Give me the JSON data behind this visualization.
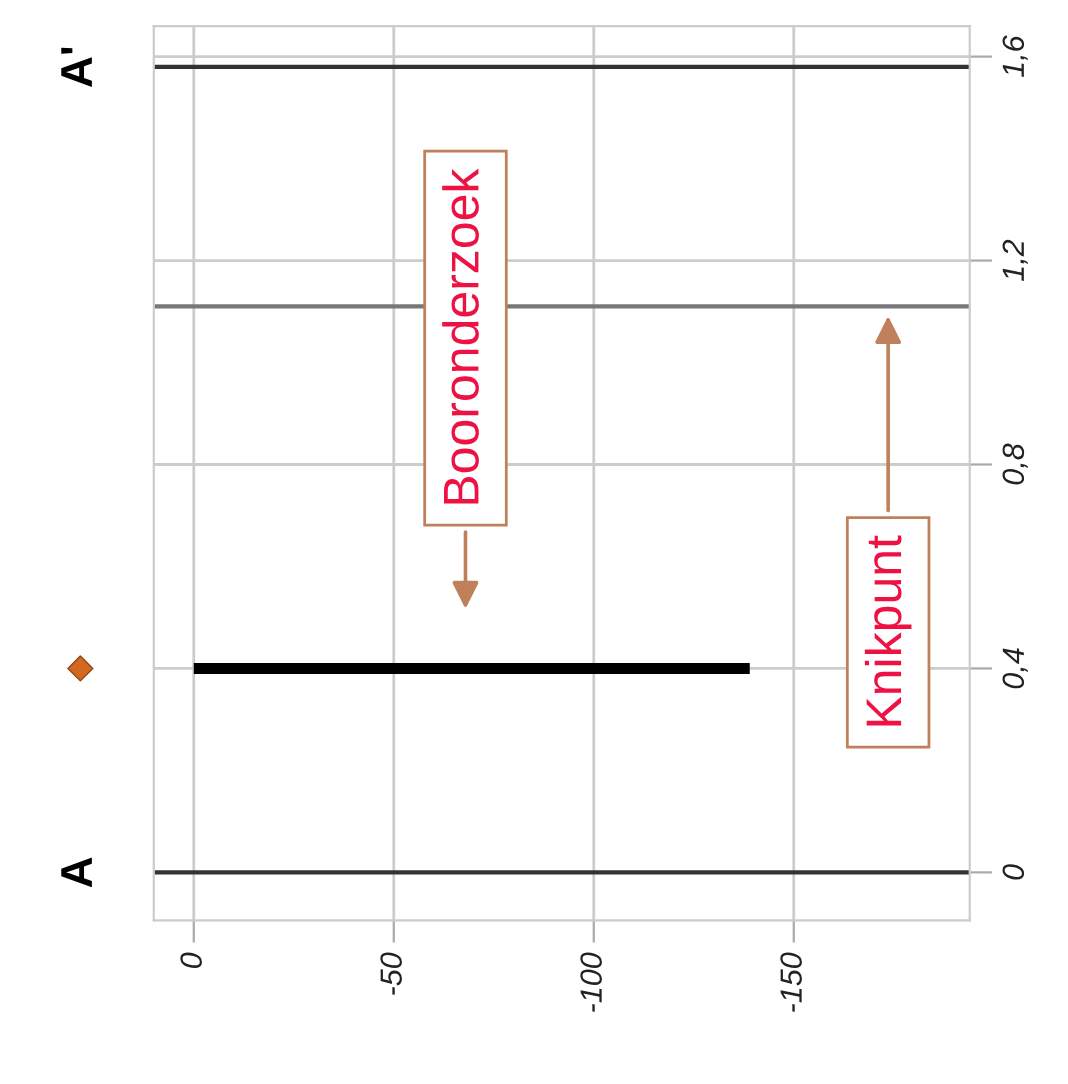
{
  "chart_data": {
    "type": "line",
    "series": [
      {
        "color": "#000000",
        "x": [
          0,
          -139
        ],
        "values": [
          0.4,
          0.4
        ]
      }
    ],
    "xlim": [
      10,
      -194
    ],
    "ylim": [
      -0.094,
      1.66
    ],
    "xticks": [
      0,
      -50,
      -100,
      -150
    ],
    "yticks": [
      0,
      {
        "value": 0.4,
        "label": "0,4"
      },
      {
        "value": 0.8,
        "label": "0,8"
      },
      {
        "value": 1.2,
        "label": "1,2"
      },
      {
        "value": 1.6,
        "label": "1,6"
      }
    ],
    "grid": true,
    "ref_lines": [
      {
        "axis": "y",
        "value": 0,
        "label": "A",
        "color": "#333333"
      },
      {
        "axis": "y",
        "value": 1.58,
        "label": "A'",
        "color": "#333333"
      },
      {
        "axis": "y",
        "value": 1.11,
        "color": "#777777"
      }
    ],
    "annotations": [
      "Booronderzoek",
      "Knikpunt"
    ]
  }
}
